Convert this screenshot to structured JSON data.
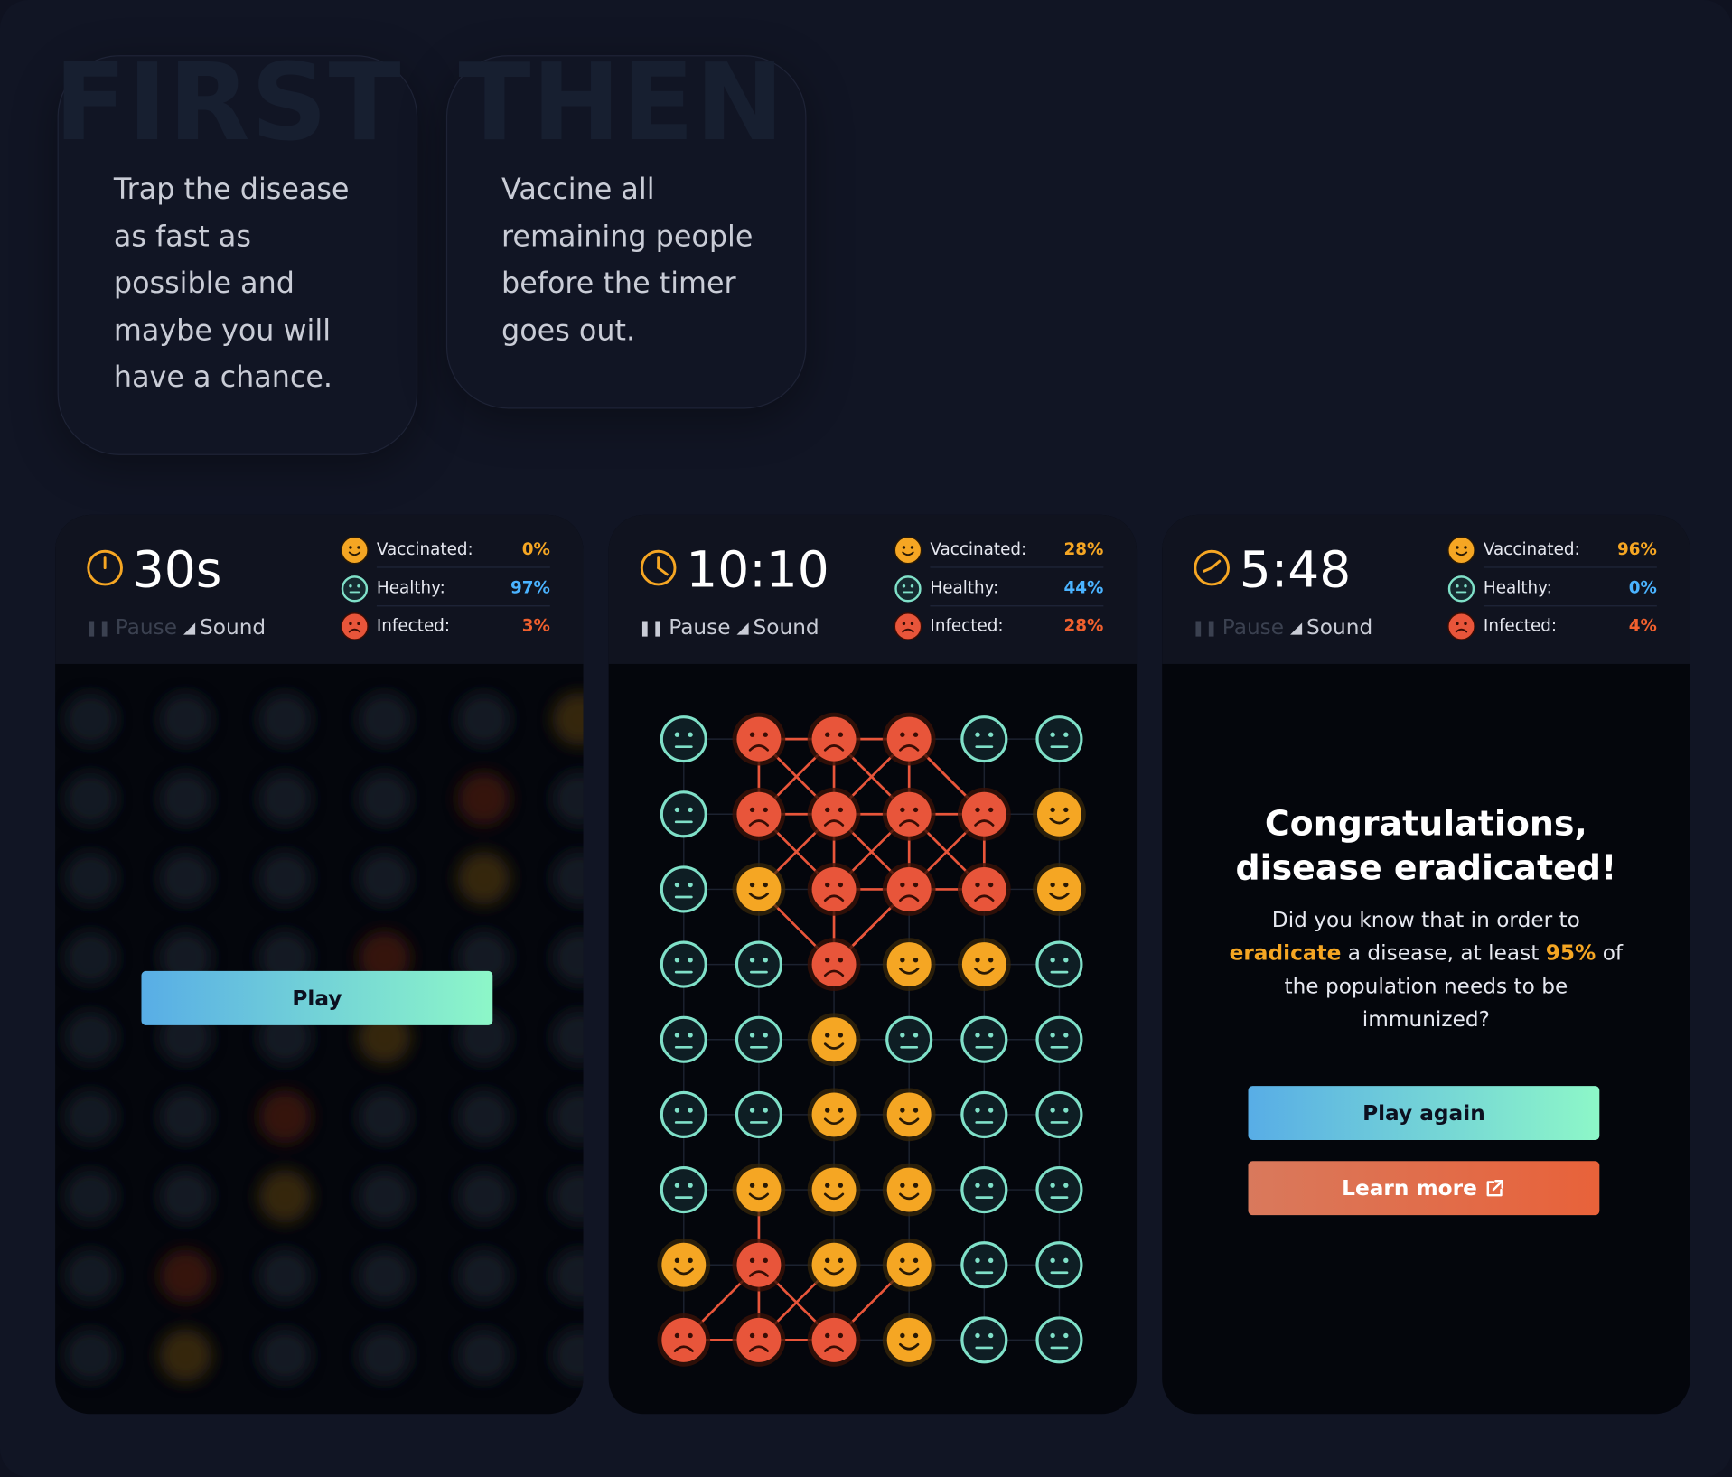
{
  "intro": {
    "first": {
      "word": "FIRST",
      "text": "Trap the disease\nas fast as\npossible and\nmaybe you will\nhave a chance."
    },
    "then": {
      "word": "THEN",
      "text": "Vaccine all\nremaining people\nbefore the timer\ngoes out."
    }
  },
  "labels": {
    "pause": "Pause",
    "sound": "Sound",
    "vaccinated": "Vaccinated:",
    "healthy": "Healthy:",
    "infected": "Infected:"
  },
  "panels": [
    {
      "timer": "30s",
      "pause_enabled": false,
      "vaccinated": "0%",
      "healthy": "97%",
      "infected": "3%",
      "play_label": "Play"
    },
    {
      "timer": "10:10",
      "pause_enabled": true,
      "vaccinated": "28%",
      "healthy": "44%",
      "infected": "28%"
    },
    {
      "timer": "5:48",
      "pause_enabled": false,
      "vaccinated": "96%",
      "healthy": "0%",
      "infected": "4%",
      "title_line1": "Congratulations,",
      "title_line2": "disease eradicated!",
      "msg_part1": "Did you know that in order to",
      "msg_eradicate": "eradicate",
      "msg_part2": "a disease, at least",
      "msg_pct": "95%",
      "msg_part3": "of the population needs to be immunized?",
      "play_again_label": "Play again",
      "learn_more_label": "Learn more"
    }
  ],
  "board": {
    "rows": [
      "HIIIHH",
      "HIIIIV",
      "HVIIIV",
      "HHIVVH",
      "HHVHHH",
      "HHVVHH",
      "HVVVHH",
      "VIVVHH",
      "IIIVHH"
    ],
    "legend": {
      "H": "healthy",
      "I": "infected",
      "V": "vaccinated"
    }
  },
  "colors": {
    "healthy": "#7fe0c8",
    "infected": "#e8553a",
    "vaccinated": "#f5a623",
    "accent_blue": "#4ab3ff"
  },
  "icons": [
    "clock-icon",
    "pause-icon",
    "sound-icon",
    "external-link-icon",
    "happy-face-icon",
    "neutral-face-icon",
    "sad-face-icon"
  ]
}
